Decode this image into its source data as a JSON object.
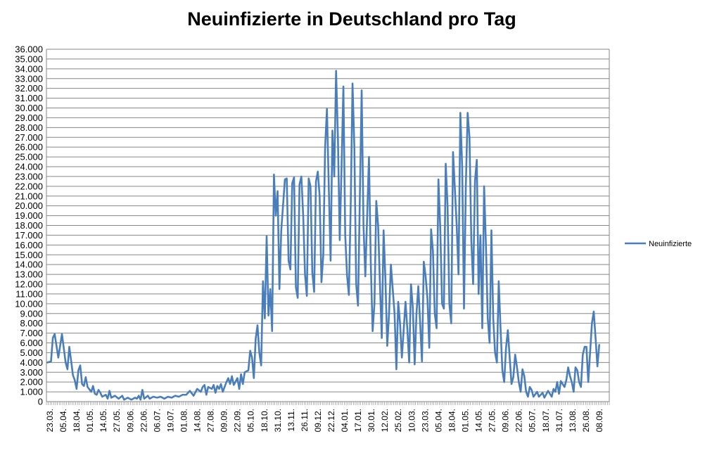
{
  "chart_data": {
    "type": "line",
    "title": "Neuinfizierte in Deutschland pro Tag",
    "xlabel": "",
    "ylabel": "",
    "ylim": [
      0,
      36000
    ],
    "yticks": [
      "0",
      "1.000",
      "2.000",
      "3.000",
      "4.000",
      "5.000",
      "6.000",
      "7.000",
      "8.000",
      "9.000",
      "10.000",
      "11.000",
      "12.000",
      "13.000",
      "14.000",
      "15.000",
      "16.000",
      "17.000",
      "18.000",
      "19.000",
      "20.000",
      "21.000",
      "22.000",
      "23.000",
      "24.000",
      "25.000",
      "26.000",
      "27.000",
      "28.000",
      "29.000",
      "30.000",
      "31.000",
      "32.000",
      "33.000",
      "34.000",
      "35.000",
      "36.000"
    ],
    "xticks": [
      "23.03.",
      "05.04.",
      "18.04.",
      "01.05.",
      "14.05.",
      "27.05.",
      "09.06.",
      "22.06.",
      "06.07.",
      "19.07.",
      "01.08.",
      "14.08.",
      "27.08.",
      "09.09.",
      "22.09.",
      "05.10.",
      "18.10.",
      "31.10.",
      "13.11.",
      "26.11.",
      "09.12.",
      "22.12.",
      "04.01.",
      "17.01.",
      "30.01.",
      "12.02.",
      "25.02.",
      "10.03.",
      "23.03.",
      "05.04.",
      "18.04.",
      "01.05.",
      "14.05.",
      "27.05.",
      "09.06.",
      "22.06.",
      "05.07.",
      "18.07.",
      "31.07.",
      "13.08.",
      "26.08.",
      "08.09."
    ],
    "grid": true,
    "legend_position": "right",
    "line_color": "#4a7ebb",
    "series": [
      {
        "name": "Neuinfizierte",
        "anchors": [
          [
            0,
            4000
          ],
          [
            2,
            4100
          ],
          [
            3,
            6500
          ],
          [
            4,
            6900
          ],
          [
            6,
            4500
          ],
          [
            8,
            6900
          ],
          [
            10,
            4000
          ],
          [
            11,
            3300
          ],
          [
            12,
            5600
          ],
          [
            13,
            4200
          ],
          [
            14,
            2700
          ],
          [
            15,
            2200
          ],
          [
            16,
            1300
          ],
          [
            17,
            3200
          ],
          [
            18,
            3700
          ],
          [
            19,
            1800
          ],
          [
            20,
            1600
          ],
          [
            21,
            2500
          ],
          [
            22,
            1500
          ],
          [
            24,
            1000
          ],
          [
            25,
            1600
          ],
          [
            26,
            800
          ],
          [
            27,
            700
          ],
          [
            28,
            1200
          ],
          [
            29,
            900
          ],
          [
            30,
            500
          ],
          [
            32,
            700
          ],
          [
            33,
            300
          ],
          [
            34,
            1100
          ],
          [
            35,
            400
          ],
          [
            37,
            600
          ],
          [
            39,
            300
          ],
          [
            41,
            600
          ],
          [
            42,
            200
          ],
          [
            44,
            400
          ],
          [
            46,
            200
          ],
          [
            48,
            400
          ],
          [
            49,
            300
          ],
          [
            50,
            600
          ],
          [
            51,
            200
          ],
          [
            52,
            1200
          ],
          [
            53,
            300
          ],
          [
            55,
            600
          ],
          [
            56,
            300
          ],
          [
            58,
            500
          ],
          [
            60,
            400
          ],
          [
            62,
            500
          ],
          [
            64,
            300
          ],
          [
            66,
            500
          ],
          [
            68,
            400
          ],
          [
            70,
            600
          ],
          [
            72,
            500
          ],
          [
            74,
            700
          ],
          [
            76,
            700
          ],
          [
            78,
            1100
          ],
          [
            80,
            600
          ],
          [
            82,
            1300
          ],
          [
            84,
            1000
          ],
          [
            85,
            1500
          ],
          [
            86,
            1700
          ],
          [
            87,
            700
          ],
          [
            88,
            1500
          ],
          [
            90,
            1300
          ],
          [
            91,
            1700
          ],
          [
            92,
            900
          ],
          [
            93,
            1600
          ],
          [
            94,
            1300
          ],
          [
            95,
            1800
          ],
          [
            96,
            1000
          ],
          [
            98,
            2000
          ],
          [
            99,
            2400
          ],
          [
            100,
            1800
          ],
          [
            101,
            2600
          ],
          [
            102,
            1700
          ],
          [
            104,
            2400
          ],
          [
            105,
            1300
          ],
          [
            106,
            2800
          ],
          [
            107,
            1800
          ],
          [
            108,
            3000
          ],
          [
            110,
            3200
          ],
          [
            111,
            5200
          ],
          [
            112,
            4500
          ],
          [
            113,
            2400
          ],
          [
            114,
            6400
          ],
          [
            115,
            7800
          ],
          [
            116,
            5000
          ],
          [
            117,
            3700
          ],
          [
            118,
            12300
          ],
          [
            119,
            8500
          ],
          [
            120,
            16900
          ],
          [
            121,
            8800
          ],
          [
            122,
            11500
          ],
          [
            123,
            7200
          ],
          [
            124,
            23200
          ],
          [
            125,
            19000
          ],
          [
            126,
            21500
          ],
          [
            127,
            11500
          ],
          [
            128,
            17500
          ],
          [
            130,
            22700
          ],
          [
            131,
            22800
          ],
          [
            132,
            14400
          ],
          [
            133,
            13500
          ],
          [
            134,
            22300
          ],
          [
            135,
            22900
          ],
          [
            136,
            11700
          ],
          [
            137,
            10600
          ],
          [
            138,
            22200
          ],
          [
            139,
            23000
          ],
          [
            140,
            19000
          ],
          [
            141,
            13000
          ],
          [
            142,
            10800
          ],
          [
            143,
            22800
          ],
          [
            144,
            22000
          ],
          [
            145,
            13200
          ],
          [
            146,
            11200
          ],
          [
            147,
            22500
          ],
          [
            148,
            23500
          ],
          [
            149,
            21000
          ],
          [
            150,
            12200
          ],
          [
            151,
            15000
          ],
          [
            152,
            26000
          ],
          [
            153,
            29900
          ],
          [
            154,
            22000
          ],
          [
            155,
            14400
          ],
          [
            156,
            27700
          ],
          [
            157,
            23000
          ],
          [
            158,
            33800
          ],
          [
            159,
            27000
          ],
          [
            160,
            16500
          ],
          [
            161,
            24000
          ],
          [
            162,
            32200
          ],
          [
            163,
            17000
          ],
          [
            164,
            12900
          ],
          [
            165,
            10900
          ],
          [
            166,
            20000
          ],
          [
            167,
            32500
          ],
          [
            168,
            26000
          ],
          [
            169,
            12000
          ],
          [
            170,
            9800
          ],
          [
            172,
            31800
          ],
          [
            173,
            18000
          ],
          [
            174,
            12800
          ],
          [
            176,
            25000
          ],
          [
            177,
            14000
          ],
          [
            178,
            7200
          ],
          [
            179,
            10000
          ],
          [
            180,
            20500
          ],
          [
            181,
            18000
          ],
          [
            182,
            12000
          ],
          [
            183,
            6500
          ],
          [
            184,
            17500
          ],
          [
            185,
            12500
          ],
          [
            186,
            5700
          ],
          [
            187,
            9000
          ],
          [
            188,
            14000
          ],
          [
            190,
            9000
          ],
          [
            191,
            3300
          ],
          [
            192,
            10200
          ],
          [
            193,
            8000
          ],
          [
            194,
            4500
          ],
          [
            196,
            10200
          ],
          [
            197,
            7400
          ],
          [
            198,
            4000
          ],
          [
            199,
            12000
          ],
          [
            200,
            9600
          ],
          [
            201,
            3800
          ],
          [
            202,
            9000
          ],
          [
            203,
            11800
          ],
          [
            204,
            8000
          ],
          [
            205,
            4100
          ],
          [
            206,
            14300
          ],
          [
            207,
            12800
          ],
          [
            208,
            10500
          ],
          [
            209,
            5500
          ],
          [
            210,
            17600
          ],
          [
            211,
            15400
          ],
          [
            212,
            9000
          ],
          [
            213,
            7500
          ],
          [
            214,
            22700
          ],
          [
            215,
            17800
          ],
          [
            216,
            10000
          ],
          [
            217,
            9500
          ],
          [
            218,
            24300
          ],
          [
            219,
            20000
          ],
          [
            220,
            10000
          ],
          [
            221,
            8000
          ],
          [
            222,
            25500
          ],
          [
            224,
            18000
          ],
          [
            225,
            13000
          ],
          [
            226,
            29500
          ],
          [
            227,
            24000
          ],
          [
            228,
            9500
          ],
          [
            229,
            22000
          ],
          [
            230,
            29500
          ],
          [
            231,
            27000
          ],
          [
            232,
            16500
          ],
          [
            233,
            12000
          ],
          [
            234,
            22500
          ],
          [
            235,
            24700
          ],
          [
            236,
            11000
          ],
          [
            237,
            17000
          ],
          [
            238,
            7500
          ],
          [
            239,
            22000
          ],
          [
            240,
            16000
          ],
          [
            241,
            8500
          ],
          [
            242,
            6000
          ],
          [
            243,
            17500
          ],
          [
            244,
            8500
          ],
          [
            245,
            5000
          ],
          [
            246,
            4000
          ],
          [
            247,
            12300
          ],
          [
            248,
            7500
          ],
          [
            249,
            3200
          ],
          [
            250,
            2000
          ],
          [
            251,
            5500
          ],
          [
            252,
            7300
          ],
          [
            253,
            4500
          ],
          [
            254,
            1800
          ],
          [
            255,
            2500
          ],
          [
            256,
            4800
          ],
          [
            257,
            3500
          ],
          [
            258,
            2000
          ],
          [
            259,
            1000
          ],
          [
            260,
            3300
          ],
          [
            261,
            2600
          ],
          [
            262,
            1000
          ],
          [
            263,
            500
          ],
          [
            264,
            1500
          ],
          [
            265,
            1200
          ],
          [
            266,
            500
          ],
          [
            268,
            1000
          ],
          [
            269,
            500
          ],
          [
            271,
            900
          ],
          [
            272,
            400
          ],
          [
            274,
            1100
          ],
          [
            276,
            500
          ],
          [
            277,
            1300
          ],
          [
            278,
            1000
          ],
          [
            279,
            2000
          ],
          [
            280,
            800
          ],
          [
            281,
            2100
          ],
          [
            283,
            1500
          ],
          [
            284,
            2200
          ],
          [
            285,
            3500
          ],
          [
            286,
            2600
          ],
          [
            287,
            2000
          ],
          [
            288,
            1000
          ],
          [
            289,
            3500
          ],
          [
            290,
            3200
          ],
          [
            291,
            2000
          ],
          [
            292,
            1500
          ],
          [
            293,
            4800
          ],
          [
            294,
            5600
          ],
          [
            295,
            5600
          ],
          [
            296,
            2000
          ],
          [
            297,
            5000
          ],
          [
            298,
            8000
          ],
          [
            299,
            9200
          ],
          [
            300,
            6500
          ],
          [
            301,
            3600
          ],
          [
            302,
            5800
          ]
        ]
      }
    ]
  }
}
